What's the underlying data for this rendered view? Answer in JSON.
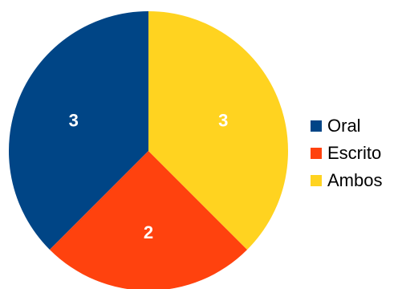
{
  "chart_data": {
    "type": "pie",
    "title": "",
    "categories": [
      "Oral",
      "Escrito",
      "Ambos"
    ],
    "values": [
      3,
      2,
      3
    ],
    "colors": [
      "#004586",
      "#ff420e",
      "#ffd320"
    ],
    "value_labels": [
      "3",
      "2",
      "3"
    ],
    "legend_position": "right",
    "start": "top, counterclockwise from first slice"
  }
}
